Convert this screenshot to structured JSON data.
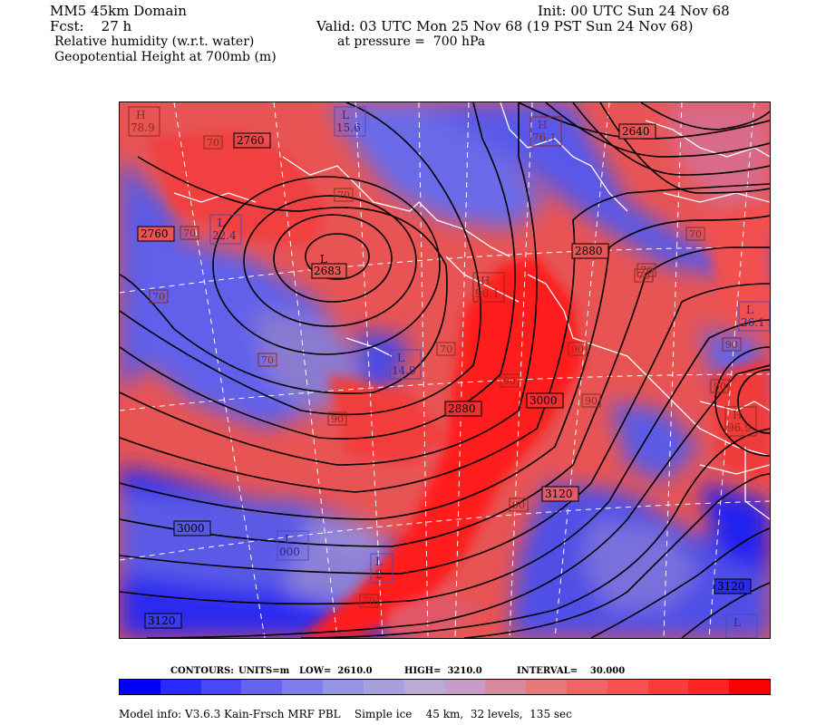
{
  "header": {
    "domain": "MM5 45km Domain",
    "fcst": "Fcst:    27 h",
    "init": "Init: 00 UTC Sun 24 Nov 68",
    "valid": "Valid: 03 UTC Mon 25 Nov 68 (19 PST Sun 24 Nov 68)",
    "field1": "Relative humidity (w.r.t. water)",
    "pressure": "at pressure =  700 hPa",
    "field2": "Geopotential Height at 700mb (m)"
  },
  "contour_info": {
    "contours": "CONTOURS:",
    "units": "UNITS=m",
    "low": "LOW=  2610.0",
    "high": "HIGH=  3210.0",
    "interval": "INTERVAL=    30.000"
  },
  "footer": "Model info: V3.6.3 Kain-Frsch MRF PBL    Simple ice    45 km,  32 levels,  135 sec",
  "colors": {
    "low": "#1010f0",
    "mid": "#9a8ed8",
    "high": "#ff1010",
    "colorbar": [
      "#0000ff",
      "#2a2aff",
      "#4848f8",
      "#6464f0",
      "#7c7cec",
      "#9494e4",
      "#a8a0dc",
      "#bcaad4",
      "#c89cc8",
      "#d88a9c",
      "#e87878",
      "#f06464",
      "#f85050",
      "#fc3a3a",
      "#fe2424",
      "#ff0000"
    ]
  },
  "map_labels": {
    "height_contours": [
      "2760",
      "2760",
      "2640",
      "2683",
      "2880",
      "2880",
      "3000",
      "3120",
      "3000",
      "3120",
      "3120"
    ],
    "rh_labels": [
      "70",
      "70",
      "70",
      "70",
      "70",
      "70",
      "70",
      "70",
      "90",
      "90",
      "90",
      "90",
      "90",
      "90",
      "90",
      "70",
      "70"
    ],
    "centers": [
      {
        "type": "H",
        "value": "78.9"
      },
      {
        "type": "L",
        "value": "15.6"
      },
      {
        "type": "H",
        "value": "76.1"
      },
      {
        "type": "L",
        "value": "22.4"
      },
      {
        "type": "L",
        "value": "2683"
      },
      {
        "type": "H",
        "value": "98.1"
      },
      {
        "type": "L",
        "value": "26.1"
      },
      {
        "type": "L",
        "value": "14.9"
      },
      {
        "type": "H",
        "value": "96.9"
      },
      {
        "type": "L",
        "value": "000"
      },
      {
        "type": "L",
        "value": "2"
      },
      {
        "type": "L",
        "value": ""
      }
    ]
  }
}
